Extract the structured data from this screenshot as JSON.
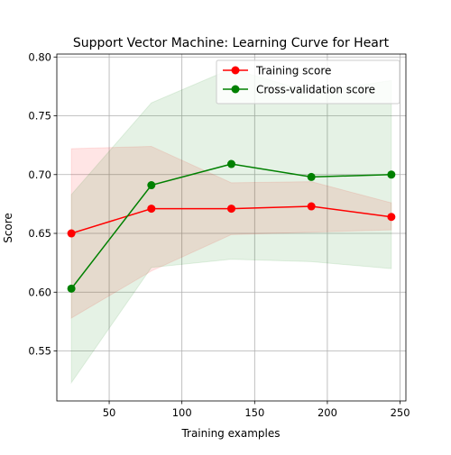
{
  "chart_data": {
    "type": "line",
    "title": "Support Vector Machine: Learning Curve for Heart",
    "xlabel": "Training examples",
    "ylabel": "Score",
    "xlim": [
      14,
      254
    ],
    "ylim": [
      0.5075,
      0.8025
    ],
    "x_ticks": [
      50,
      100,
      150,
      200,
      250
    ],
    "y_ticks": [
      0.55,
      0.6,
      0.65,
      0.7,
      0.75,
      0.8
    ],
    "x_tick_labels": [
      "50",
      "100",
      "150",
      "200",
      "250"
    ],
    "y_tick_labels": [
      "0.55",
      "0.60",
      "0.65",
      "0.70",
      "0.75",
      "0.80"
    ],
    "grid": true,
    "legend_position": "upper-right",
    "x": [
      24,
      79,
      134,
      189,
      244
    ],
    "series": [
      {
        "name": "Training score",
        "color": "#ff0000",
        "values": [
          0.65,
          0.671,
          0.671,
          0.673,
          0.664
        ],
        "band_lower": [
          0.578,
          0.618,
          0.649,
          0.651,
          0.653
        ],
        "band_upper": [
          0.722,
          0.724,
          0.693,
          0.694,
          0.676
        ]
      },
      {
        "name": "Cross-validation score",
        "color": "#008000",
        "values": [
          0.603,
          0.691,
          0.709,
          0.698,
          0.7
        ],
        "band_lower": [
          0.523,
          0.621,
          0.628,
          0.626,
          0.62
        ],
        "band_upper": [
          0.683,
          0.761,
          0.79,
          0.77,
          0.78
        ]
      }
    ]
  }
}
